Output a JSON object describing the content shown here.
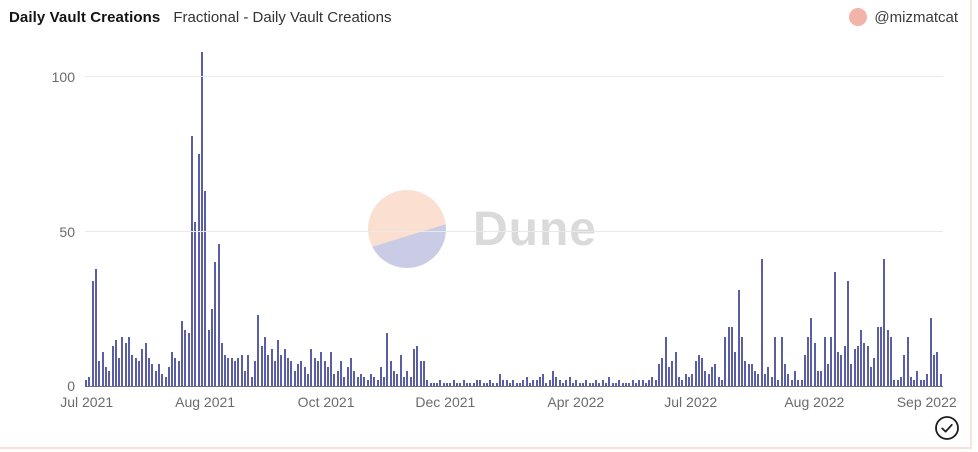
{
  "header": {
    "title": "Daily Vault Creations",
    "subtitle": "Fractional - Daily Vault Creations",
    "author_handle": "@mizmatcat"
  },
  "watermark": {
    "text": "Dune"
  },
  "colors": {
    "bar": "#5a5ea6",
    "avatar": "#f2b4a9",
    "gridline": "#e9e9e9",
    "axis_line": "#6e7079",
    "tick_label": "#6b6b6b",
    "watermark_circle_top": "#fbdfd0",
    "watermark_circle_bottom": "#c9cce4",
    "watermark_text": "#dadada",
    "card_border": "#f8e2d9"
  },
  "chart_data": {
    "type": "bar",
    "title": "Daily Vault Creations",
    "xlabel": "",
    "ylabel": "",
    "ylim": [
      0,
      110
    ],
    "y_ticks": [
      0,
      50,
      100
    ],
    "grid": true,
    "legend": false,
    "x_ticks": [
      {
        "label": "Jul 2021",
        "pos": 0.002
      },
      {
        "label": "Aug 2021",
        "pos": 0.14
      },
      {
        "label": "Oct 2021",
        "pos": 0.281
      },
      {
        "label": "Dec 2021",
        "pos": 0.42
      },
      {
        "label": "Apr 2022",
        "pos": 0.572
      },
      {
        "label": "Jul 2022",
        "pos": 0.706
      },
      {
        "label": "Aug 2022",
        "pos": 0.85
      },
      {
        "label": "Sep 2022",
        "pos": 0.981
      }
    ],
    "values": [
      2,
      3,
      34,
      38,
      8,
      11,
      6,
      5,
      13,
      15,
      9,
      16,
      14,
      16,
      10,
      9,
      8,
      12,
      14,
      9,
      7,
      5,
      7,
      4,
      3,
      6,
      11,
      9,
      8,
      21,
      18,
      17,
      81,
      53,
      75,
      108,
      63,
      18,
      25,
      40,
      46,
      14,
      10,
      9,
      9,
      8,
      9,
      10,
      5,
      10,
      3,
      8,
      23,
      13,
      16,
      10,
      12,
      8,
      15,
      10,
      12,
      9,
      8,
      5,
      7,
      8,
      6,
      4,
      12,
      9,
      8,
      11,
      8,
      6,
      11,
      4,
      5,
      8,
      3,
      6,
      9,
      5,
      3,
      4,
      3,
      2,
      4,
      3,
      2,
      6,
      3,
      17,
      8,
      5,
      4,
      10,
      3,
      5,
      3,
      12,
      13,
      8,
      8,
      2,
      1,
      1,
      1,
      2,
      1,
      1,
      1,
      2,
      1,
      1,
      2,
      1,
      1,
      1,
      2,
      2,
      1,
      1,
      2,
      1,
      1,
      4,
      2,
      2,
      1,
      2,
      1,
      1,
      2,
      3,
      1,
      2,
      2,
      3,
      4,
      1,
      2,
      5,
      3,
      2,
      1,
      2,
      3,
      1,
      2,
      1,
      1,
      2,
      1,
      1,
      2,
      1,
      2,
      1,
      3,
      1,
      1,
      2,
      1,
      1,
      1,
      2,
      1,
      2,
      2,
      1,
      2,
      3,
      2,
      7,
      9,
      16,
      6,
      8,
      11,
      3,
      2,
      4,
      3,
      4,
      8,
      10,
      9,
      5,
      4,
      6,
      7,
      3,
      2,
      16,
      19,
      19,
      11,
      31,
      16,
      8,
      7,
      7,
      5,
      4,
      41,
      4,
      6,
      3,
      16,
      2,
      16,
      7,
      4,
      2,
      5,
      2,
      2,
      10,
      16,
      22,
      14,
      5,
      5,
      16,
      7,
      16,
      37,
      11,
      10,
      13,
      34,
      7,
      12,
      13,
      18,
      14,
      13,
      6,
      9,
      19,
      19,
      41,
      18,
      16,
      2,
      2,
      3,
      10,
      16,
      3,
      2,
      5,
      2,
      2,
      4,
      22,
      10,
      11,
      4
    ]
  }
}
